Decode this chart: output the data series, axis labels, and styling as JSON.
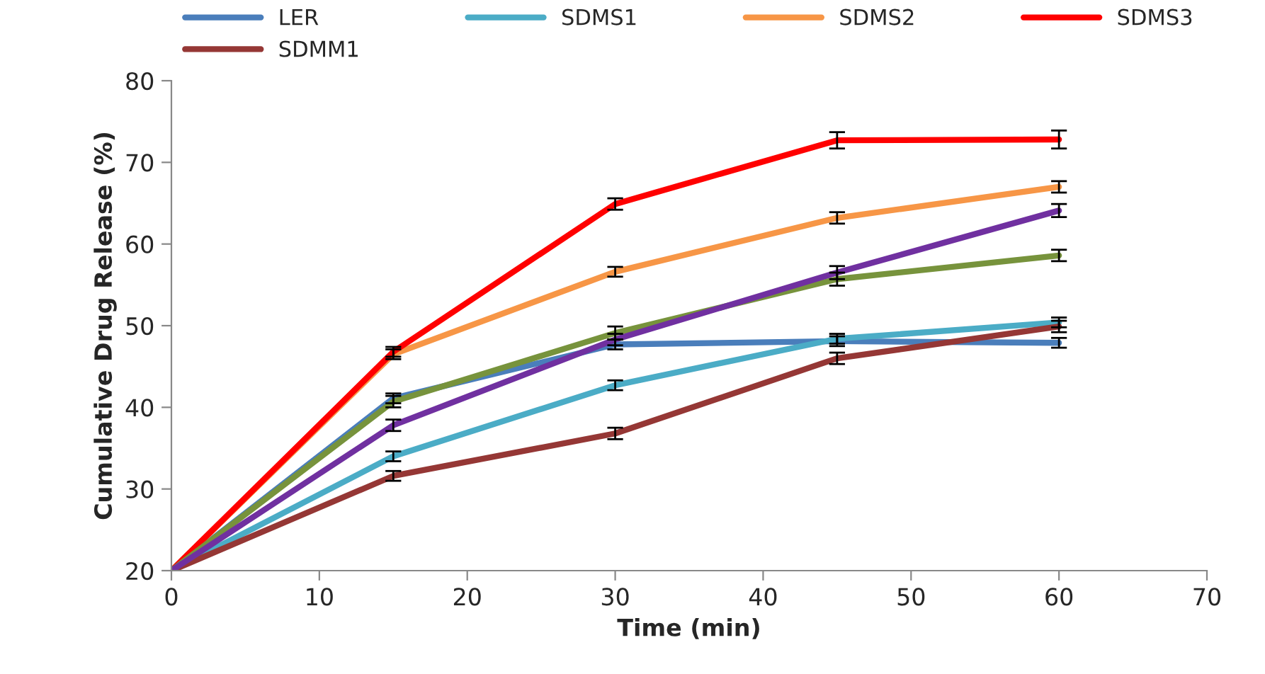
{
  "chart_data": {
    "type": "line",
    "xlabel": "Time (min)",
    "ylabel": "Cumulative Drug Release (%)",
    "x": [
      0,
      15,
      30,
      45,
      60
    ],
    "series": [
      {
        "name": "LER",
        "color": "#4a7ebb",
        "values": [
          20,
          41.1,
          47.7,
          48.1,
          47.9
        ],
        "errors": [
          null,
          0.6,
          0.6,
          0.6,
          0.6
        ]
      },
      {
        "name": "SDMS1",
        "color": "#4bacc6",
        "values": [
          20,
          34.0,
          42.7,
          48.4,
          50.4
        ],
        "errors": [
          null,
          0.6,
          0.6,
          0.6,
          0.6
        ]
      },
      {
        "name": "SDMS2",
        "color": "#f79646",
        "values": [
          20,
          46.5,
          56.6,
          63.2,
          67.0
        ],
        "errors": [
          null,
          0.6,
          0.6,
          0.7,
          0.7
        ]
      },
      {
        "name": "SDMS3",
        "color": "#ff0000",
        "values": [
          20,
          46.8,
          64.9,
          72.7,
          72.8
        ],
        "errors": [
          null,
          0.6,
          0.7,
          1.0,
          1.1
        ]
      },
      {
        "name": "SDMM1",
        "color": "#953735",
        "values": [
          20,
          31.6,
          36.8,
          46.0,
          49.9
        ],
        "errors": [
          null,
          0.6,
          0.7,
          0.7,
          0.7
        ]
      },
      {
        "color": "#77933c",
        "values": [
          20,
          40.7,
          49.1,
          55.7,
          58.6
        ],
        "errors": [
          null,
          0.7,
          0.8,
          0.8,
          0.7
        ]
      },
      {
        "color": "#7030a0",
        "values": [
          20,
          37.8,
          48.3,
          56.5,
          64.1
        ],
        "errors": [
          null,
          0.7,
          0.7,
          0.8,
          0.8
        ]
      }
    ],
    "xlim": [
      0,
      70
    ],
    "xticks": [
      0,
      10,
      20,
      30,
      40,
      50,
      60,
      70
    ],
    "ylim": [
      20,
      80
    ],
    "yticks": [
      20,
      30,
      40,
      50,
      60,
      70,
      80
    ],
    "grid": false,
    "legend": "top",
    "marker": "none",
    "line_style": "solid"
  }
}
